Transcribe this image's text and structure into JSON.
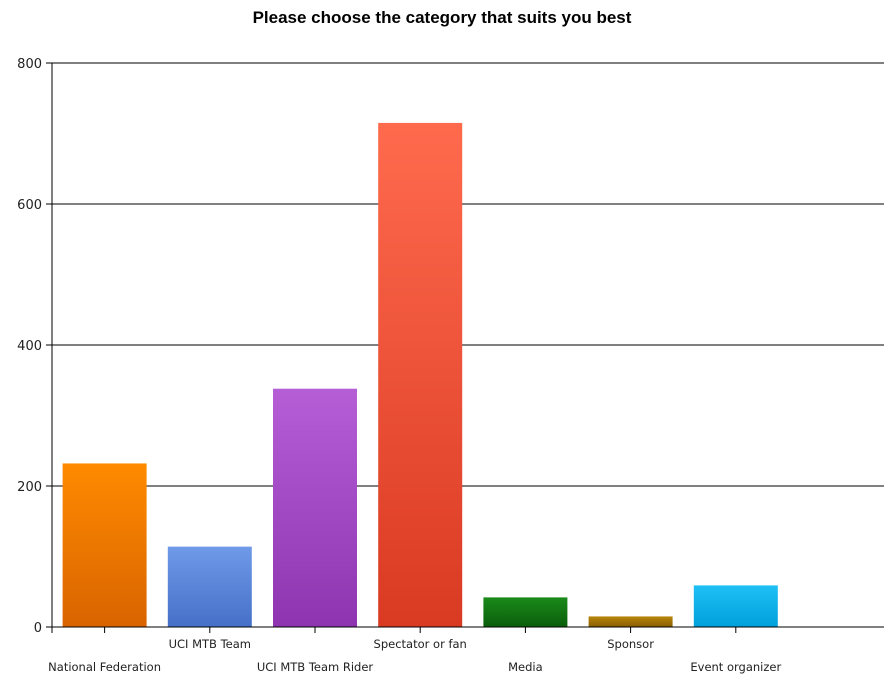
{
  "chart_data": {
    "type": "bar",
    "title": "Please choose the category that suits you best",
    "xlabel": "",
    "ylabel": "",
    "ylim": [
      0,
      800
    ],
    "yticks": [
      0,
      200,
      400,
      600,
      800
    ],
    "grid": true,
    "legend": "none",
    "categories": [
      "National Federation",
      "UCI MTB Team",
      "UCI MTB Team Rider",
      "Spectator or fan",
      "Media",
      "Sponsor",
      "Event organizer"
    ],
    "values": [
      232,
      114,
      338,
      715,
      42,
      15,
      59
    ],
    "colors": [
      [
        "#ff8a00",
        "#d96400"
      ],
      [
        "#6f9ae8",
        "#4670c8"
      ],
      [
        "#b55ed6",
        "#8e34b0"
      ],
      [
        "#ff6a4d",
        "#d93a22"
      ],
      [
        "#1a8a1a",
        "#0b5e0b"
      ],
      [
        "#b8860b",
        "#8a5e04"
      ],
      [
        "#1ec0f5",
        "#00a0dc"
      ]
    ]
  }
}
